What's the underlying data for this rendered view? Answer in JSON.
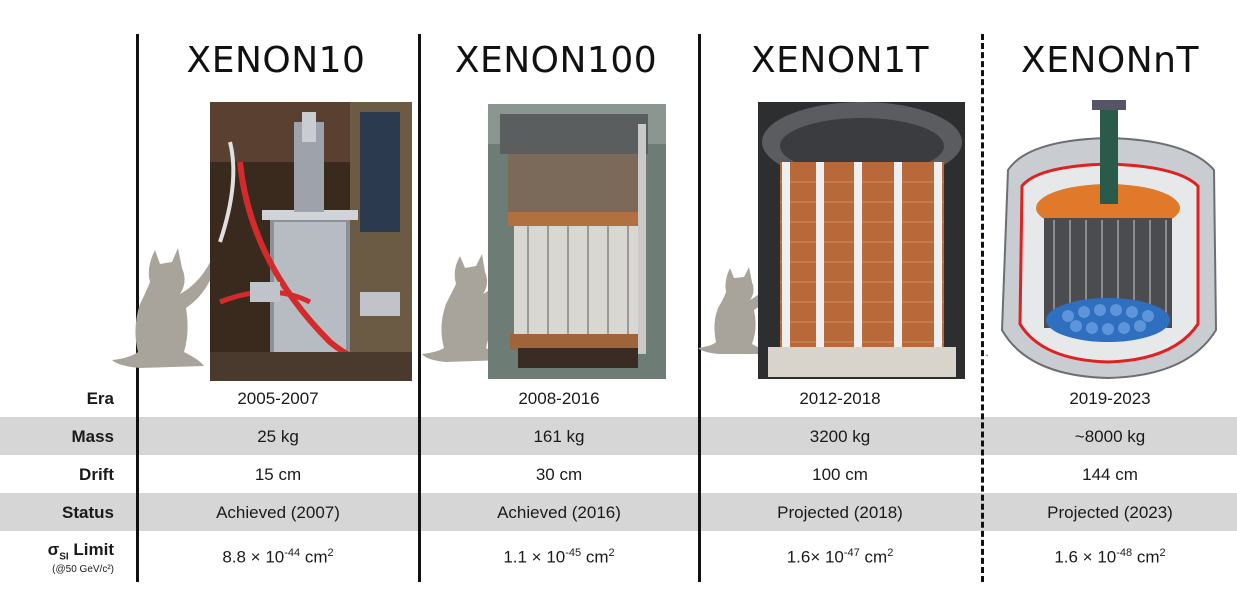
{
  "experiments": [
    {
      "name": "XENON10",
      "era": "2005-2007",
      "mass": "25 kg",
      "drift": "15 cm",
      "status": "Achieved (2007)",
      "limit_base": "8.8 × 10",
      "limit_exp": "-44",
      "limit_unit": " cm",
      "limit_unit_exp": "2"
    },
    {
      "name": "XENON100",
      "era": "2008-2016",
      "mass": "161 kg",
      "drift": "30 cm",
      "status": "Achieved (2016)",
      "limit_base": "1.1 × 10",
      "limit_exp": "-45",
      "limit_unit": " cm",
      "limit_unit_exp": "2"
    },
    {
      "name": "XENON1T",
      "era": "2012-2018",
      "mass": "3200 kg",
      "drift": "100 cm",
      "status": "Projected (2018)",
      "limit_base": "1.6× 10",
      "limit_exp": "-47",
      "limit_unit": " cm",
      "limit_unit_exp": "2"
    },
    {
      "name": "XENONnT",
      "era": "2019-2023",
      "mass": "~8000 kg",
      "drift": "144 cm",
      "status": "Projected (2023)",
      "limit_base": "1.6 × 10",
      "limit_exp": "-48",
      "limit_unit": " cm",
      "limit_unit_exp": "2"
    }
  ],
  "row_labels": {
    "era": "Era",
    "mass": "Mass",
    "drift": "Drift",
    "status": "Status",
    "limit_main": "σ",
    "limit_sub": "SI",
    "limit_word": " Limit",
    "limit_note": "(@50 GeV/c²)"
  },
  "colors": {
    "band": "#d6d6d6",
    "line": "#111111",
    "cat": "#a8a49c",
    "copper": "#b8693a",
    "pmt": "#2f6fc0",
    "orange": "#e07a2a"
  },
  "icons": [
    "cat-silhouette-icon",
    "detector-photo"
  ]
}
